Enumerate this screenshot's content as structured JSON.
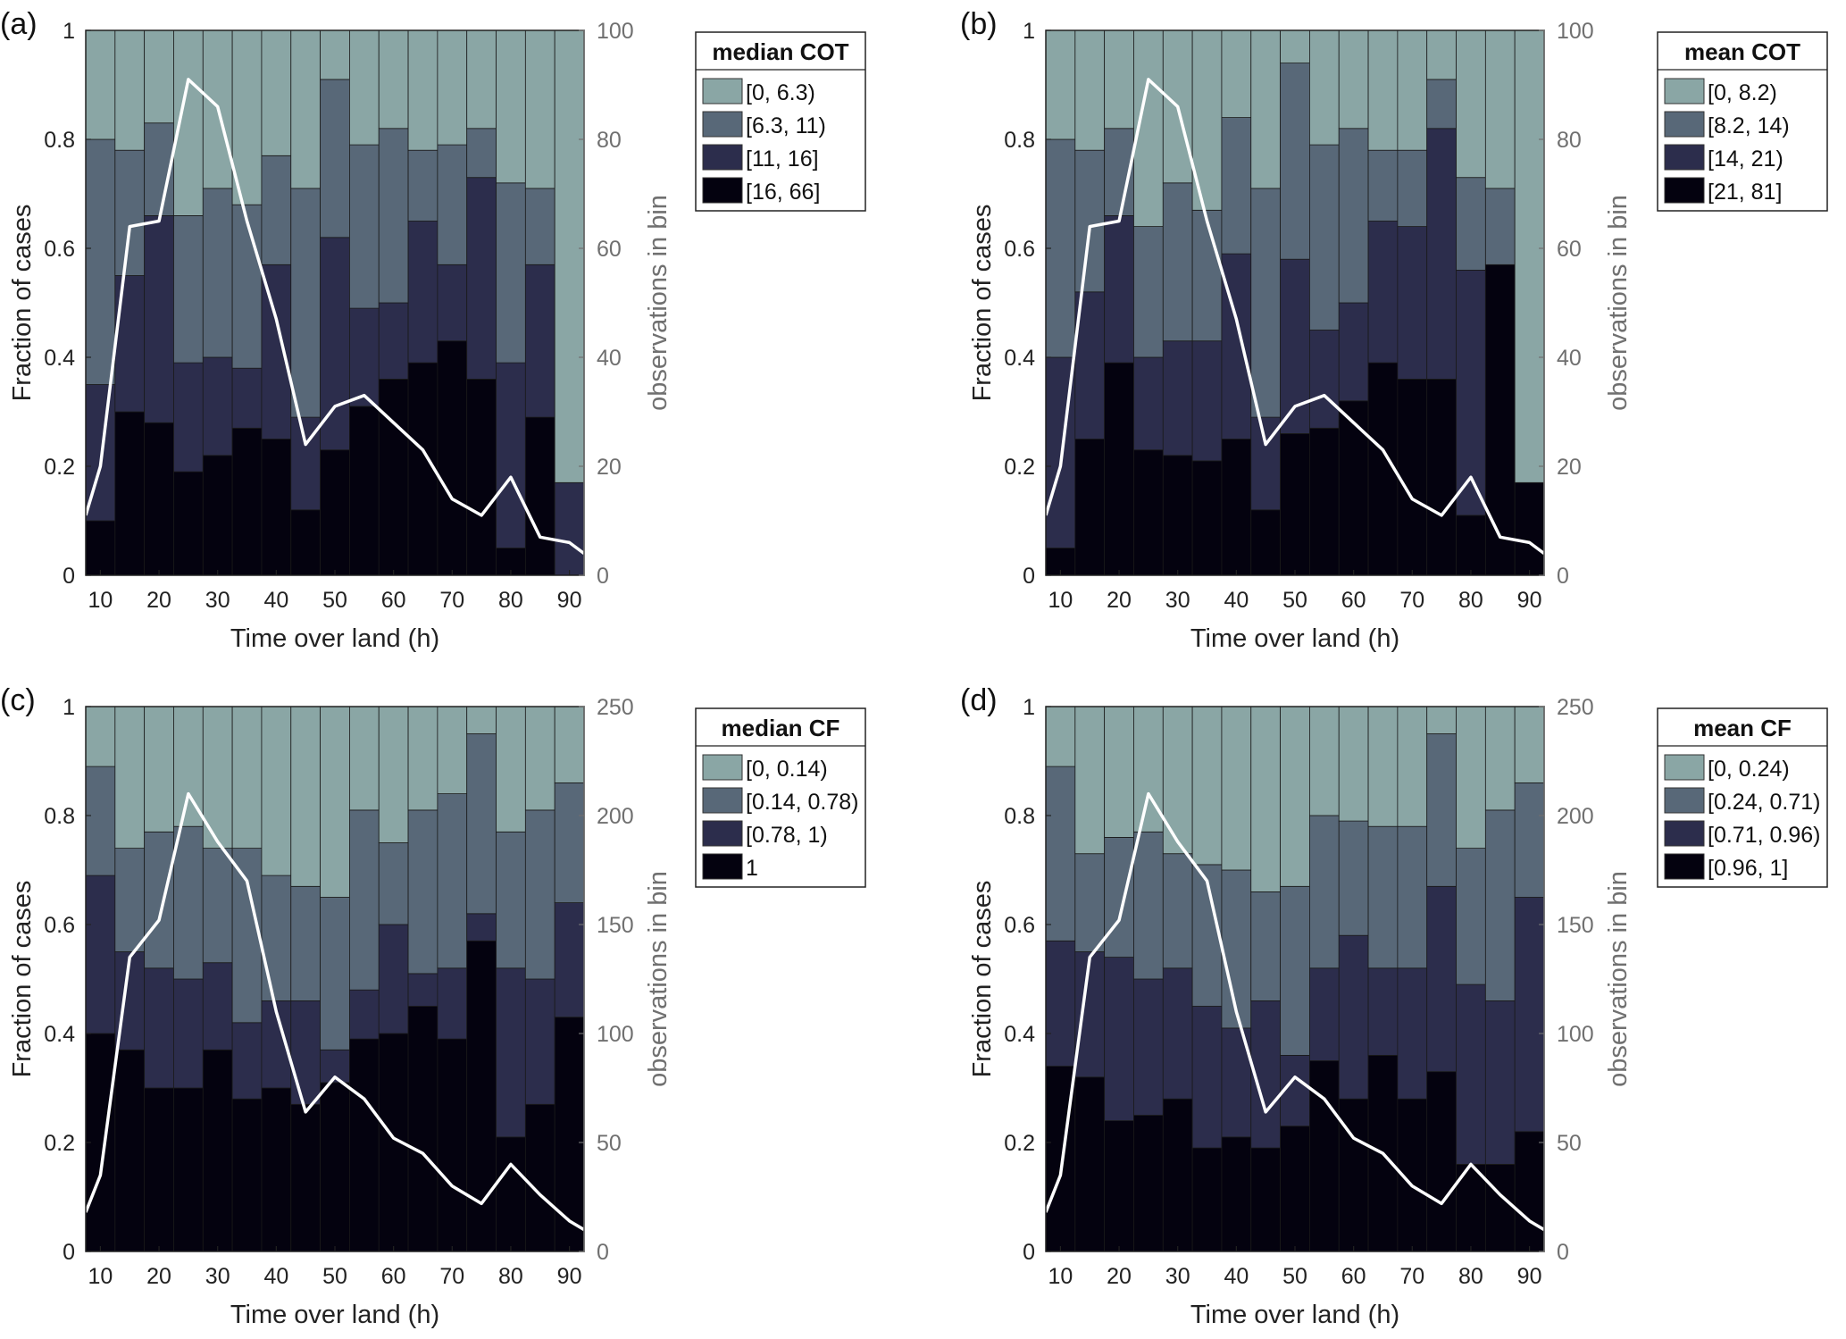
{
  "chart_data": [
    {
      "type": "bar",
      "panel_label": "(a)",
      "xlabel": "Time over land (h)",
      "ylabel": "Fraction of cases",
      "y2label": "observations in bin",
      "xlim": [
        7.5,
        92.5
      ],
      "ylim": [
        0,
        1
      ],
      "y2lim": [
        0,
        100
      ],
      "x_ticks": [
        10,
        20,
        30,
        40,
        50,
        60,
        70,
        80,
        90
      ],
      "y_ticks": [
        0,
        0.2,
        0.4,
        0.6,
        0.8,
        1
      ],
      "y2_ticks": [
        0,
        20,
        40,
        60,
        80,
        100
      ],
      "legend_title": "median COT",
      "legend_position": "right-top",
      "bin_edges": [
        7.5,
        12.5,
        17.5,
        22.5,
        27.5,
        32.5,
        37.5,
        42.5,
        47.5,
        52.5,
        57.5,
        62.5,
        67.5,
        72.5,
        77.5,
        82.5,
        87.5,
        92.5
      ],
      "series": [
        {
          "name": "[16, 66]",
          "values": [
            0.1,
            0.3,
            0.28,
            0.19,
            0.22,
            0.27,
            0.25,
            0.12,
            0.23,
            0.31,
            0.36,
            0.39,
            0.43,
            0.36,
            0.05,
            0.29,
            0.0
          ]
        },
        {
          "name": "[11, 16]",
          "values": [
            0.25,
            0.25,
            0.38,
            0.2,
            0.18,
            0.11,
            0.32,
            0.17,
            0.39,
            0.18,
            0.14,
            0.26,
            0.14,
            0.37,
            0.34,
            0.28,
            0.17
          ]
        },
        {
          "name": "[6.3, 11)",
          "values": [
            0.45,
            0.23,
            0.17,
            0.27,
            0.31,
            0.3,
            0.2,
            0.42,
            0.29,
            0.3,
            0.32,
            0.13,
            0.22,
            0.09,
            0.33,
            0.14,
            0.0
          ]
        },
        {
          "name": "[0, 6.3)",
          "values": [
            0.2,
            0.22,
            0.17,
            0.34,
            0.29,
            0.32,
            0.23,
            0.29,
            0.09,
            0.21,
            0.18,
            0.22,
            0.21,
            0.18,
            0.28,
            0.29,
            0.83
          ]
        }
      ],
      "observations": {
        "x": [
          7.5,
          10,
          15,
          20,
          25,
          30,
          35,
          40,
          45,
          50,
          55,
          60,
          65,
          70,
          75,
          80,
          85,
          90,
          92.5
        ],
        "y": [
          11,
          20,
          64,
          65,
          91,
          86,
          65,
          47,
          24,
          31,
          33,
          28,
          23,
          14,
          11,
          18,
          7,
          6,
          4
        ]
      },
      "grid": false
    },
    {
      "type": "bar",
      "panel_label": "(b)",
      "xlabel": "Time over land (h)",
      "ylabel": "Fraction of cases",
      "y2label": "observations in bin",
      "xlim": [
        7.5,
        92.5
      ],
      "ylim": [
        0,
        1
      ],
      "y2lim": [
        0,
        100
      ],
      "x_ticks": [
        10,
        20,
        30,
        40,
        50,
        60,
        70,
        80,
        90
      ],
      "y_ticks": [
        0,
        0.2,
        0.4,
        0.6,
        0.8,
        1
      ],
      "y2_ticks": [
        0,
        20,
        40,
        60,
        80,
        100
      ],
      "legend_title": "mean COT",
      "legend_position": "right-top",
      "bin_edges": [
        7.5,
        12.5,
        17.5,
        22.5,
        27.5,
        32.5,
        37.5,
        42.5,
        47.5,
        52.5,
        57.5,
        62.5,
        67.5,
        72.5,
        77.5,
        82.5,
        87.5,
        92.5
      ],
      "series": [
        {
          "name": "[21, 81]",
          "values": [
            0.05,
            0.25,
            0.39,
            0.23,
            0.22,
            0.21,
            0.25,
            0.12,
            0.26,
            0.27,
            0.32,
            0.39,
            0.36,
            0.36,
            0.11,
            0.57,
            0.17
          ]
        },
        {
          "name": "[14, 21)",
          "values": [
            0.35,
            0.27,
            0.27,
            0.17,
            0.21,
            0.22,
            0.34,
            0.17,
            0.32,
            0.18,
            0.18,
            0.26,
            0.28,
            0.46,
            0.45,
            0.0,
            0.0
          ]
        },
        {
          "name": "[8.2, 14)",
          "values": [
            0.4,
            0.26,
            0.16,
            0.24,
            0.29,
            0.24,
            0.25,
            0.42,
            0.36,
            0.34,
            0.32,
            0.13,
            0.14,
            0.09,
            0.17,
            0.14,
            0.0
          ]
        },
        {
          "name": "[0, 8.2)",
          "values": [
            0.2,
            0.22,
            0.18,
            0.36,
            0.28,
            0.33,
            0.16,
            0.29,
            0.06,
            0.21,
            0.18,
            0.22,
            0.22,
            0.09,
            0.27,
            0.29,
            0.83
          ]
        }
      ],
      "observations": {
        "x": [
          7.5,
          10,
          15,
          20,
          25,
          30,
          35,
          40,
          45,
          50,
          55,
          60,
          65,
          70,
          75,
          80,
          85,
          90,
          92.5
        ],
        "y": [
          11,
          20,
          64,
          65,
          91,
          86,
          65,
          47,
          24,
          31,
          33,
          28,
          23,
          14,
          11,
          18,
          7,
          6,
          4
        ]
      },
      "grid": false
    },
    {
      "type": "bar",
      "panel_label": "(c)",
      "xlabel": "Time over land (h)",
      "ylabel": "Fraction of cases",
      "y2label": "observations in bin",
      "xlim": [
        7.5,
        92.5
      ],
      "ylim": [
        0,
        1
      ],
      "y2lim": [
        0,
        250
      ],
      "x_ticks": [
        10,
        20,
        30,
        40,
        50,
        60,
        70,
        80,
        90
      ],
      "y_ticks": [
        0,
        0.2,
        0.4,
        0.6,
        0.8,
        1
      ],
      "y2_ticks": [
        0,
        50,
        100,
        150,
        200,
        250
      ],
      "legend_title": "median CF",
      "legend_position": "right-top",
      "bin_edges": [
        7.5,
        12.5,
        17.5,
        22.5,
        27.5,
        32.5,
        37.5,
        42.5,
        47.5,
        52.5,
        57.5,
        62.5,
        67.5,
        72.5,
        77.5,
        82.5,
        87.5,
        92.5
      ],
      "series": [
        {
          "name": "1",
          "values": [
            0.4,
            0.37,
            0.3,
            0.3,
            0.37,
            0.28,
            0.3,
            0.27,
            0.31,
            0.39,
            0.4,
            0.45,
            0.39,
            0.57,
            0.21,
            0.27,
            0.43
          ]
        },
        {
          "name": "[0.78, 1)",
          "values": [
            0.29,
            0.18,
            0.22,
            0.2,
            0.16,
            0.14,
            0.16,
            0.19,
            0.06,
            0.09,
            0.2,
            0.06,
            0.13,
            0.05,
            0.31,
            0.23,
            0.21
          ]
        },
        {
          "name": "[0.14, 0.78)",
          "values": [
            0.2,
            0.19,
            0.25,
            0.28,
            0.21,
            0.32,
            0.23,
            0.21,
            0.28,
            0.33,
            0.15,
            0.3,
            0.32,
            0.33,
            0.25,
            0.31,
            0.22
          ]
        },
        {
          "name": "[0, 0.14)",
          "values": [
            0.11,
            0.26,
            0.23,
            0.22,
            0.26,
            0.26,
            0.31,
            0.33,
            0.35,
            0.19,
            0.25,
            0.19,
            0.16,
            0.05,
            0.23,
            0.19,
            0.14
          ]
        }
      ],
      "observations": {
        "x": [
          7.5,
          10,
          15,
          20,
          25,
          30,
          35,
          40,
          45,
          50,
          55,
          60,
          65,
          70,
          75,
          80,
          85,
          90,
          92.5
        ],
        "y": [
          18,
          35,
          135,
          152,
          210,
          188,
          170,
          110,
          64,
          80,
          70,
          52,
          45,
          30,
          22,
          40,
          26,
          14,
          10
        ]
      },
      "grid": false
    },
    {
      "type": "bar",
      "panel_label": "(d)",
      "xlabel": "Time over land (h)",
      "ylabel": "Fraction of cases",
      "y2label": "observations in bin",
      "xlim": [
        7.5,
        92.5
      ],
      "ylim": [
        0,
        1
      ],
      "y2lim": [
        0,
        250
      ],
      "x_ticks": [
        10,
        20,
        30,
        40,
        50,
        60,
        70,
        80,
        90
      ],
      "y_ticks": [
        0,
        0.2,
        0.4,
        0.6,
        0.8,
        1
      ],
      "y2_ticks": [
        0,
        50,
        100,
        150,
        200,
        250
      ],
      "legend_title": "mean CF",
      "legend_position": "right-top",
      "bin_edges": [
        7.5,
        12.5,
        17.5,
        22.5,
        27.5,
        32.5,
        37.5,
        42.5,
        47.5,
        52.5,
        57.5,
        62.5,
        67.5,
        72.5,
        77.5,
        82.5,
        87.5,
        92.5
      ],
      "series": [
        {
          "name": "[0.96, 1]",
          "values": [
            0.34,
            0.32,
            0.24,
            0.25,
            0.28,
            0.19,
            0.21,
            0.19,
            0.23,
            0.35,
            0.28,
            0.36,
            0.28,
            0.33,
            0.16,
            0.16,
            0.22
          ]
        },
        {
          "name": "[0.71, 0.96)",
          "values": [
            0.23,
            0.23,
            0.3,
            0.25,
            0.24,
            0.26,
            0.2,
            0.27,
            0.13,
            0.17,
            0.3,
            0.16,
            0.24,
            0.34,
            0.33,
            0.3,
            0.43
          ]
        },
        {
          "name": "[0.24, 0.71)",
          "values": [
            0.32,
            0.18,
            0.22,
            0.27,
            0.21,
            0.26,
            0.29,
            0.2,
            0.31,
            0.28,
            0.21,
            0.26,
            0.26,
            0.28,
            0.25,
            0.35,
            0.21
          ]
        },
        {
          "name": "[0, 0.24)",
          "values": [
            0.11,
            0.27,
            0.24,
            0.23,
            0.27,
            0.29,
            0.3,
            0.34,
            0.33,
            0.2,
            0.21,
            0.22,
            0.22,
            0.05,
            0.26,
            0.19,
            0.14
          ]
        }
      ],
      "observations": {
        "x": [
          7.5,
          10,
          15,
          20,
          25,
          30,
          35,
          40,
          45,
          50,
          55,
          60,
          65,
          70,
          75,
          80,
          85,
          90,
          92.5
        ],
        "y": [
          18,
          35,
          135,
          152,
          210,
          188,
          170,
          110,
          64,
          80,
          70,
          52,
          45,
          30,
          22,
          40,
          26,
          14,
          10
        ]
      },
      "grid": false
    }
  ],
  "colors": {
    "class_1": "#8aa6a5",
    "class_2": "#586878",
    "class_3": "#2c2d4c",
    "class_4": "#04020f",
    "line": "#ffffff",
    "right_axis": "#707070",
    "axis": "#222222"
  }
}
